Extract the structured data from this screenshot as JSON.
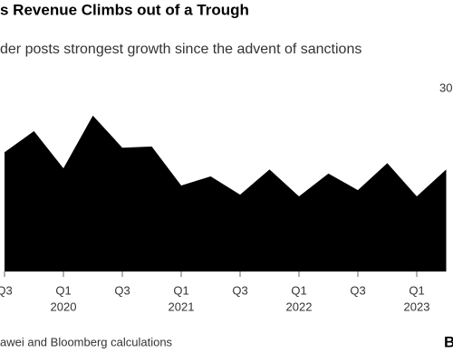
{
  "chart_data": {
    "type": "area",
    "title": "s Revenue Climbs out of a Trough",
    "subtitle": "der posts strongest growth since the advent of sanctions",
    "categories": [
      "Q3",
      null,
      "Q1",
      null,
      "Q3",
      null,
      "Q1",
      null,
      "Q3",
      null,
      "Q1",
      null,
      "Q3",
      null,
      "Q1",
      null
    ],
    "years": [
      null,
      null,
      "2020",
      null,
      null,
      null,
      "2021",
      null,
      null,
      null,
      "2022",
      null,
      null,
      null,
      "2023",
      null
    ],
    "values": [
      20.8,
      24.5,
      18,
      27.2,
      21.6,
      21.8,
      15,
      16.6,
      13.4,
      17.8,
      13.1,
      17.1,
      14.2,
      18.9,
      13.1,
      17.8
    ],
    "color": "#000000",
    "ylim": [
      0,
      35
    ],
    "yticks": [
      30
    ],
    "source": "awei and Bloomberg calculations",
    "logo": "B"
  }
}
